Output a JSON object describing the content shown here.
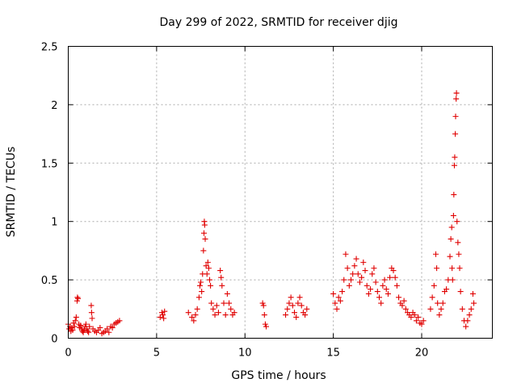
{
  "chart_data": {
    "type": "scatter",
    "title": "Day 299 of 2022, SRMTID for receiver djig",
    "xlabel": "GPS time / hours",
    "ylabel": "SRMTID / TECUs",
    "xlim": [
      0,
      24
    ],
    "ylim": [
      0,
      2.5
    ],
    "x_ticks": [
      0,
      5,
      10,
      15,
      20
    ],
    "x_tick_labels": [
      "0",
      "5",
      "10",
      "15",
      "20"
    ],
    "y_ticks": [
      0,
      0.5,
      1,
      1.5,
      2,
      2.5
    ],
    "y_tick_labels": [
      "0",
      "0.5",
      "1",
      "1.5",
      "2",
      "2.5"
    ],
    "grid": true,
    "marker": "+",
    "series": [
      {
        "name": "SRMTID",
        "color": "#e00000",
        "points": [
          [
            0.0,
            0.12
          ],
          [
            0.05,
            0.08
          ],
          [
            0.1,
            0.1
          ],
          [
            0.15,
            0.06
          ],
          [
            0.2,
            0.09
          ],
          [
            0.25,
            0.07
          ],
          [
            0.3,
            0.13
          ],
          [
            0.35,
            0.1
          ],
          [
            0.4,
            0.15
          ],
          [
            0.45,
            0.18
          ],
          [
            0.5,
            0.32
          ],
          [
            0.52,
            0.35
          ],
          [
            0.55,
            0.34
          ],
          [
            0.6,
            0.12
          ],
          [
            0.65,
            0.09
          ],
          [
            0.7,
            0.11
          ],
          [
            0.75,
            0.08
          ],
          [
            0.8,
            0.06
          ],
          [
            0.85,
            0.05
          ],
          [
            0.9,
            0.07
          ],
          [
            0.95,
            0.1
          ],
          [
            1.0,
            0.12
          ],
          [
            1.05,
            0.08
          ],
          [
            1.1,
            0.06
          ],
          [
            1.15,
            0.05
          ],
          [
            1.2,
            0.1
          ],
          [
            1.3,
            0.28
          ],
          [
            1.32,
            0.22
          ],
          [
            1.35,
            0.17
          ],
          [
            1.4,
            0.08
          ],
          [
            1.5,
            0.06
          ],
          [
            1.6,
            0.05
          ],
          [
            1.7,
            0.07
          ],
          [
            1.8,
            0.09
          ],
          [
            1.9,
            0.04
          ],
          [
            2.0,
            0.05
          ],
          [
            2.1,
            0.06
          ],
          [
            2.2,
            0.08
          ],
          [
            2.3,
            0.05
          ],
          [
            2.4,
            0.1
          ],
          [
            2.5,
            0.09
          ],
          [
            2.6,
            0.12
          ],
          [
            2.7,
            0.13
          ],
          [
            2.8,
            0.14
          ],
          [
            2.9,
            0.15
          ],
          [
            5.2,
            0.18
          ],
          [
            5.3,
            0.22
          ],
          [
            5.35,
            0.2
          ],
          [
            5.4,
            0.17
          ],
          [
            5.45,
            0.23
          ],
          [
            6.8,
            0.22
          ],
          [
            7.0,
            0.18
          ],
          [
            7.1,
            0.15
          ],
          [
            7.2,
            0.2
          ],
          [
            7.3,
            0.25
          ],
          [
            7.4,
            0.35
          ],
          [
            7.45,
            0.45
          ],
          [
            7.5,
            0.48
          ],
          [
            7.55,
            0.4
          ],
          [
            7.6,
            0.55
          ],
          [
            7.65,
            0.75
          ],
          [
            7.68,
            0.9
          ],
          [
            7.7,
            1.0
          ],
          [
            7.72,
            0.97
          ],
          [
            7.75,
            0.85
          ],
          [
            7.8,
            0.62
          ],
          [
            7.85,
            0.55
          ],
          [
            7.9,
            0.65
          ],
          [
            7.95,
            0.6
          ],
          [
            8.0,
            0.5
          ],
          [
            8.05,
            0.45
          ],
          [
            8.1,
            0.3
          ],
          [
            8.2,
            0.25
          ],
          [
            8.3,
            0.2
          ],
          [
            8.4,
            0.28
          ],
          [
            8.5,
            0.22
          ],
          [
            8.6,
            0.58
          ],
          [
            8.65,
            0.52
          ],
          [
            8.7,
            0.45
          ],
          [
            8.8,
            0.3
          ],
          [
            8.9,
            0.2
          ],
          [
            9.0,
            0.38
          ],
          [
            9.1,
            0.3
          ],
          [
            9.2,
            0.25
          ],
          [
            9.3,
            0.2
          ],
          [
            9.4,
            0.22
          ],
          [
            11.0,
            0.3
          ],
          [
            11.05,
            0.28
          ],
          [
            11.1,
            0.2
          ],
          [
            11.15,
            0.12
          ],
          [
            11.2,
            0.1
          ],
          [
            12.3,
            0.2
          ],
          [
            12.4,
            0.25
          ],
          [
            12.5,
            0.3
          ],
          [
            12.6,
            0.35
          ],
          [
            12.7,
            0.28
          ],
          [
            12.8,
            0.22
          ],
          [
            12.9,
            0.18
          ],
          [
            13.0,
            0.3
          ],
          [
            13.1,
            0.35
          ],
          [
            13.2,
            0.28
          ],
          [
            13.3,
            0.22
          ],
          [
            13.4,
            0.2
          ],
          [
            13.5,
            0.25
          ],
          [
            15.0,
            0.38
          ],
          [
            15.1,
            0.3
          ],
          [
            15.2,
            0.25
          ],
          [
            15.3,
            0.35
          ],
          [
            15.4,
            0.32
          ],
          [
            15.5,
            0.4
          ],
          [
            15.6,
            0.5
          ],
          [
            15.7,
            0.72
          ],
          [
            15.8,
            0.6
          ],
          [
            15.9,
            0.45
          ],
          [
            16.0,
            0.5
          ],
          [
            16.1,
            0.55
          ],
          [
            16.2,
            0.62
          ],
          [
            16.3,
            0.68
          ],
          [
            16.4,
            0.55
          ],
          [
            16.5,
            0.48
          ],
          [
            16.6,
            0.52
          ],
          [
            16.7,
            0.65
          ],
          [
            16.8,
            0.58
          ],
          [
            16.9,
            0.45
          ],
          [
            17.0,
            0.38
          ],
          [
            17.1,
            0.42
          ],
          [
            17.2,
            0.55
          ],
          [
            17.3,
            0.6
          ],
          [
            17.4,
            0.48
          ],
          [
            17.5,
            0.4
          ],
          [
            17.6,
            0.35
          ],
          [
            17.7,
            0.3
          ],
          [
            17.8,
            0.45
          ],
          [
            17.9,
            0.5
          ],
          [
            18.0,
            0.42
          ],
          [
            18.1,
            0.38
          ],
          [
            18.2,
            0.52
          ],
          [
            18.3,
            0.6
          ],
          [
            18.4,
            0.58
          ],
          [
            18.5,
            0.52
          ],
          [
            18.6,
            0.45
          ],
          [
            18.7,
            0.35
          ],
          [
            18.8,
            0.3
          ],
          [
            18.9,
            0.28
          ],
          [
            19.0,
            0.32
          ],
          [
            19.1,
            0.25
          ],
          [
            19.2,
            0.22
          ],
          [
            19.3,
            0.2
          ],
          [
            19.4,
            0.18
          ],
          [
            19.5,
            0.22
          ],
          [
            19.6,
            0.2
          ],
          [
            19.7,
            0.15
          ],
          [
            19.8,
            0.18
          ],
          [
            19.9,
            0.13
          ],
          [
            20.0,
            0.12
          ],
          [
            20.1,
            0.15
          ],
          [
            20.5,
            0.25
          ],
          [
            20.6,
            0.35
          ],
          [
            20.7,
            0.45
          ],
          [
            20.8,
            0.72
          ],
          [
            20.85,
            0.6
          ],
          [
            20.9,
            0.3
          ],
          [
            21.0,
            0.2
          ],
          [
            21.1,
            0.25
          ],
          [
            21.2,
            0.3
          ],
          [
            21.3,
            0.4
          ],
          [
            21.4,
            0.42
          ],
          [
            21.5,
            0.5
          ],
          [
            21.6,
            0.7
          ],
          [
            21.65,
            0.85
          ],
          [
            21.7,
            0.95
          ],
          [
            21.72,
            0.6
          ],
          [
            21.75,
            0.5
          ],
          [
            21.8,
            1.05
          ],
          [
            21.82,
            1.23
          ],
          [
            21.85,
            1.48
          ],
          [
            21.87,
            1.55
          ],
          [
            21.9,
            1.75
          ],
          [
            21.92,
            1.9
          ],
          [
            21.95,
            2.05
          ],
          [
            21.97,
            2.1
          ],
          [
            22.0,
            1.0
          ],
          [
            22.05,
            0.82
          ],
          [
            22.1,
            0.72
          ],
          [
            22.15,
            0.6
          ],
          [
            22.2,
            0.4
          ],
          [
            22.3,
            0.25
          ],
          [
            22.4,
            0.15
          ],
          [
            22.5,
            0.1
          ],
          [
            22.6,
            0.15
          ],
          [
            22.7,
            0.2
          ],
          [
            22.8,
            0.25
          ],
          [
            22.9,
            0.38
          ],
          [
            22.95,
            0.3
          ]
        ]
      }
    ]
  }
}
